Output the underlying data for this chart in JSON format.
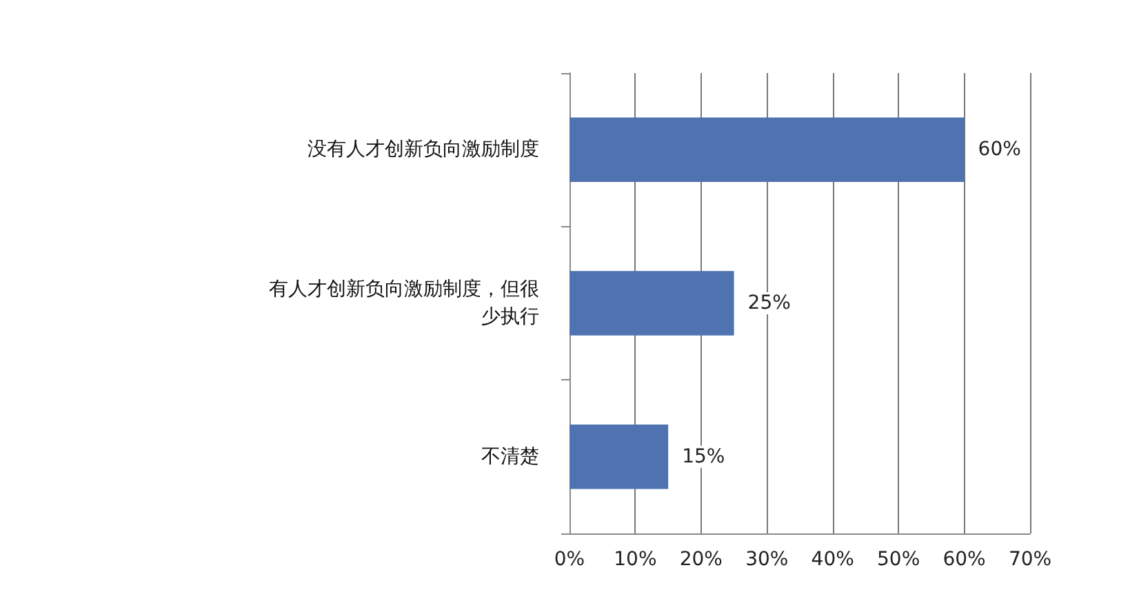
{
  "chart_data": {
    "type": "bar",
    "orientation": "horizontal",
    "categories": [
      "没有人才创新负向激励制度",
      "有人才创新负向激励制度，但很少执行",
      "不清楚"
    ],
    "values": [
      60,
      25,
      15
    ],
    "color": "#4f72b0",
    "value_labels": [
      "60%",
      "25%",
      "15%"
    ],
    "xlim": [
      0,
      70
    ],
    "xticks": [
      {
        "value": 0,
        "label": "0%"
      },
      {
        "value": 10,
        "label": "10%"
      },
      {
        "value": 20,
        "label": "20%"
      },
      {
        "value": 30,
        "label": "30%"
      },
      {
        "value": 40,
        "label": "40%"
      },
      {
        "value": 50,
        "label": "50%"
      },
      {
        "value": 60,
        "label": "60%"
      },
      {
        "value": 70,
        "label": "70%"
      }
    ],
    "grid": "x"
  }
}
